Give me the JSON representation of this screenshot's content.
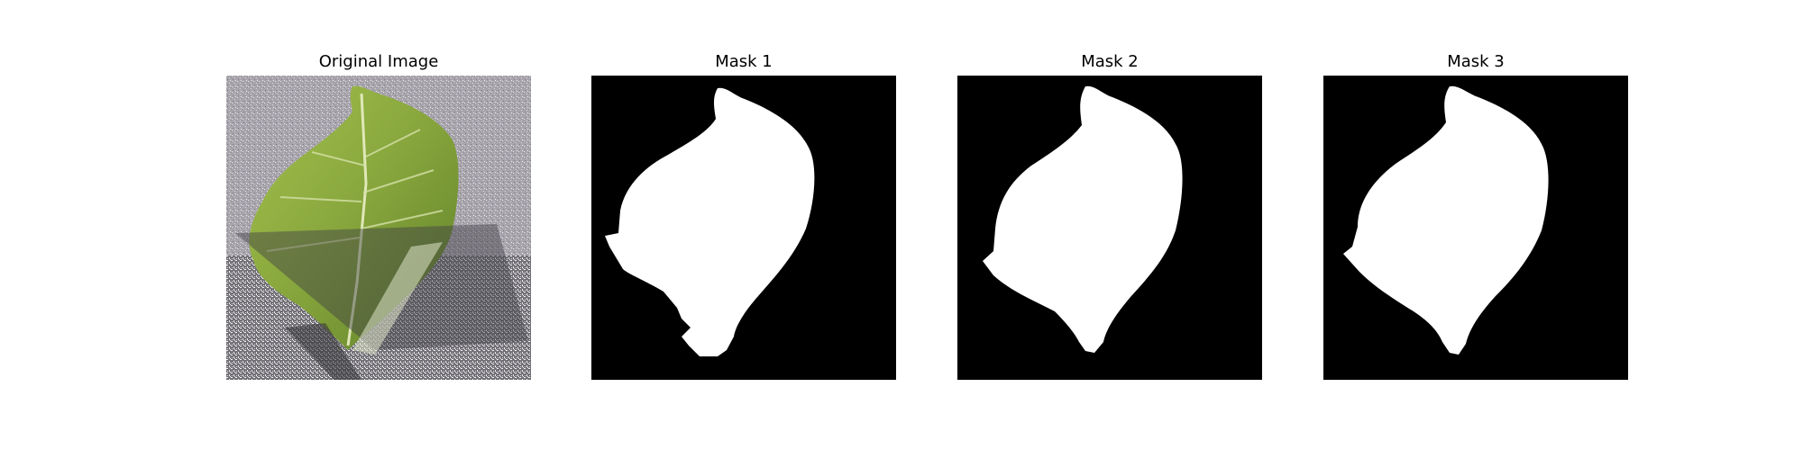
{
  "figure": {
    "panels": [
      {
        "title": "Original Image",
        "kind": "photo",
        "description_icon": "leaf-photo"
      },
      {
        "title": "Mask 1",
        "kind": "mask"
      },
      {
        "title": "Mask 2",
        "kind": "mask"
      },
      {
        "title": "Mask 3",
        "kind": "mask"
      }
    ]
  },
  "colors": {
    "mask_background": "#000000",
    "mask_foreground": "#ffffff",
    "leaf_green": "#7fa03a",
    "asphalt_gray": "#a8a3ab",
    "shadow_gray": "#5e5e62"
  }
}
